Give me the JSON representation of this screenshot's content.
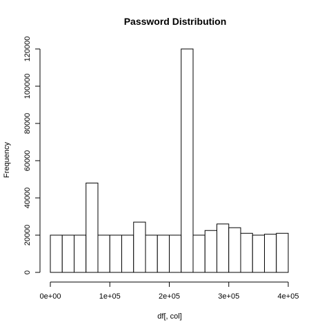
{
  "chart_data": {
    "type": "bar",
    "title": "Password  Distribution",
    "xlabel": "df[, col]",
    "ylabel": "Frequency",
    "xlim": [
      0,
      400000
    ],
    "ylim": [
      0,
      120000
    ],
    "bin_width": 20000,
    "bins_start": [
      0,
      20000,
      40000,
      60000,
      80000,
      100000,
      120000,
      140000,
      160000,
      180000,
      200000,
      220000,
      240000,
      260000,
      280000,
      300000,
      320000,
      340000,
      360000,
      380000
    ],
    "values": [
      20000,
      20000,
      20000,
      48000,
      20000,
      20000,
      20000,
      27000,
      20000,
      20000,
      20000,
      120000,
      20000,
      22500,
      26000,
      24000,
      21000,
      20000,
      20500,
      21000
    ],
    "x_ticks": [
      0,
      100000,
      200000,
      300000,
      400000
    ],
    "x_tick_labels": [
      "0e+00",
      "1e+05",
      "2e+05",
      "3e+05",
      "4e+05"
    ],
    "y_ticks": [
      0,
      20000,
      40000,
      60000,
      80000,
      100000,
      120000
    ],
    "y_tick_labels": [
      "0",
      "20000",
      "40000",
      "60000",
      "80000",
      "100000",
      "120000"
    ],
    "grid": false,
    "legend": "none",
    "colors": {
      "bar_fill": "#ffffff",
      "bar_stroke": "#000000"
    }
  }
}
